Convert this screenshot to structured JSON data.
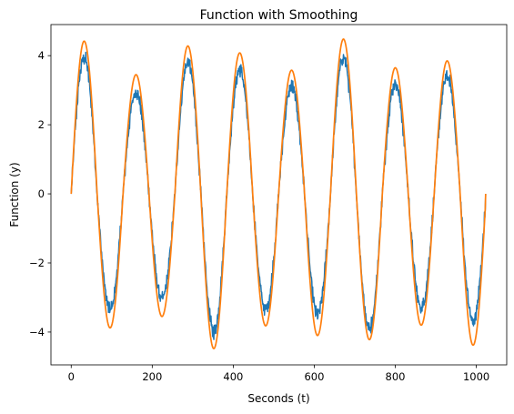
{
  "chart_data": {
    "type": "line",
    "title": "Function with Smoothing",
    "xlabel": "Seconds (t)",
    "ylabel": "Function (y)",
    "xlim": [
      -50,
      1075
    ],
    "ylim": [
      -4.95,
      4.9
    ],
    "xticks": [
      0,
      200,
      400,
      600,
      800,
      1000
    ],
    "yticks": [
      -4,
      -2,
      0,
      2,
      4
    ],
    "xtick_labels": [
      "0",
      "200",
      "400",
      "600",
      "800",
      "1000"
    ],
    "ytick_labels": [
      "−4",
      "−2",
      "0",
      "2",
      "4"
    ],
    "grid": false,
    "legend": "none",
    "x_range": [
      0,
      1023
    ],
    "period": 128,
    "colors": [
      "#1f77b4",
      "#ff7f0e"
    ],
    "series": [
      {
        "style": "noisy",
        "noise_amplitude": 0.15,
        "cycle_starts": [
          0,
          128,
          256,
          384,
          512,
          640,
          768,
          896
        ],
        "peak_values": [
          3.95,
          2.95,
          3.8,
          3.6,
          3.1,
          3.95,
          3.2,
          3.4
        ],
        "trough_values": [
          -3.35,
          -3.05,
          -4.0,
          -3.35,
          -3.5,
          -3.9,
          -3.3,
          -3.7
        ]
      },
      {
        "style": "smooth",
        "cycle_starts": [
          0,
          128,
          256,
          384,
          512,
          640,
          768,
          896
        ],
        "peak_values": [
          4.42,
          3.45,
          4.28,
          4.08,
          3.58,
          4.48,
          3.65,
          3.85
        ],
        "trough_values": [
          -3.88,
          -3.55,
          -4.48,
          -3.82,
          -4.1,
          -4.22,
          -3.8,
          -4.38
        ]
      }
    ]
  }
}
